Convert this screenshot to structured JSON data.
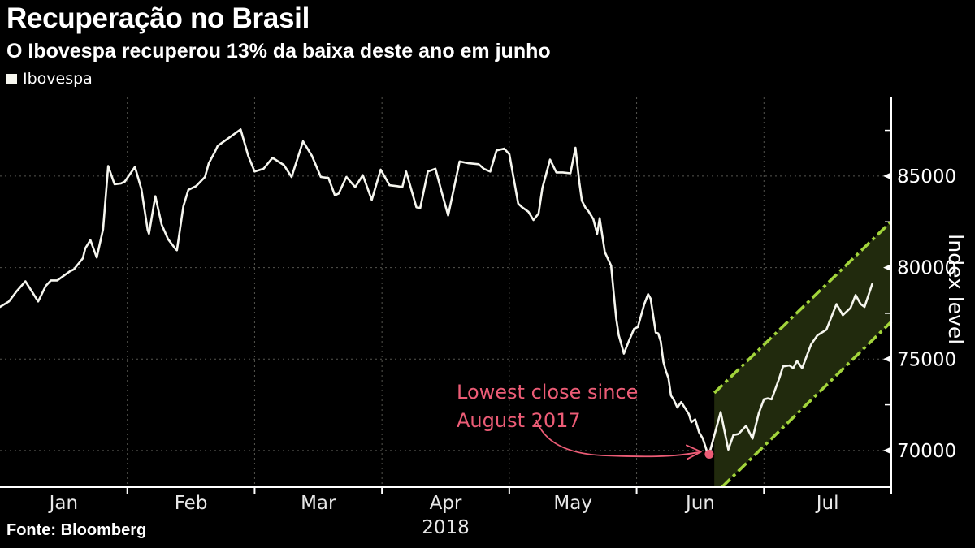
{
  "header": {
    "title": "Recuperação no Brasil",
    "subtitle": "O Ibovespa recuperou 13% da baixa deste ano em junho"
  },
  "legend": {
    "label": "Ibovespa",
    "marker_color": "#f6f6ef"
  },
  "source": {
    "label": "Fonte: Bloomberg"
  },
  "annotation": {
    "line1": "Lowest close since",
    "line2": "August 2017",
    "color": "#ec5c76",
    "dot_x": 5.57,
    "dot_value": 69800
  },
  "chart_data": {
    "type": "line",
    "title": "Recuperação no Brasil",
    "subtitle": "O Ibovespa recuperou 13% da baixa deste ano em junho",
    "x_axis": {
      "unit": "months since Jan 1 2018 (0 = Jan 1, 7 = Aug 1)",
      "range": [
        0,
        7
      ],
      "month_labels": [
        "Jan",
        "Feb",
        "Mar",
        "Apr",
        "May",
        "Jun",
        "Jul"
      ],
      "year_label": "2018",
      "gridlines_at": [
        1,
        2,
        3,
        4,
        5,
        6
      ],
      "tick_positions": [
        1,
        2,
        3,
        4,
        5,
        6,
        7
      ]
    },
    "y_axis": {
      "label": "Index level",
      "range": [
        68000,
        89300
      ],
      "major_ticks": [
        70000,
        75000,
        80000,
        85000
      ],
      "minor_ticks": [
        72500,
        77500,
        82500,
        87500
      ]
    },
    "series": [
      {
        "name": "Ibovespa",
        "color": "#f6f6ef",
        "points": [
          [
            0,
            77850
          ],
          [
            0.07,
            78150
          ],
          [
            0.13,
            78700
          ],
          [
            0.2,
            79250
          ],
          [
            0.25,
            78700
          ],
          [
            0.3,
            78150
          ],
          [
            0.36,
            79000
          ],
          [
            0.4,
            79300
          ],
          [
            0.45,
            79300
          ],
          [
            0.5,
            79550
          ],
          [
            0.55,
            79800
          ],
          [
            0.58,
            79900
          ],
          [
            0.65,
            80500
          ],
          [
            0.67,
            81050
          ],
          [
            0.71,
            81500
          ],
          [
            0.76,
            80550
          ],
          [
            0.81,
            82100
          ],
          [
            0.85,
            85550
          ],
          [
            0.9,
            84550
          ],
          [
            0.95,
            84600
          ],
          [
            0.98,
            84700
          ],
          [
            1.06,
            85500
          ],
          [
            1.11,
            84300
          ],
          [
            1.16,
            82050
          ],
          [
            1.17,
            81850
          ],
          [
            1.22,
            83900
          ],
          [
            1.27,
            82350
          ],
          [
            1.32,
            81550
          ],
          [
            1.38,
            81000
          ],
          [
            1.39,
            80950
          ],
          [
            1.44,
            83350
          ],
          [
            1.48,
            84250
          ],
          [
            1.54,
            84450
          ],
          [
            1.61,
            84950
          ],
          [
            1.64,
            85700
          ],
          [
            1.69,
            86350
          ],
          [
            1.71,
            86650
          ],
          [
            1.8,
            87100
          ],
          [
            1.89,
            87550
          ],
          [
            1.95,
            86100
          ],
          [
            2,
            85250
          ],
          [
            2.07,
            85400
          ],
          [
            2.14,
            86000
          ],
          [
            2.23,
            85600
          ],
          [
            2.29,
            84950
          ],
          [
            2.38,
            86900
          ],
          [
            2.45,
            86100
          ],
          [
            2.52,
            84950
          ],
          [
            2.58,
            84900
          ],
          [
            2.63,
            83950
          ],
          [
            2.66,
            84050
          ],
          [
            2.72,
            84950
          ],
          [
            2.79,
            84400
          ],
          [
            2.85,
            85050
          ],
          [
            2.92,
            83700
          ],
          [
            2.99,
            85350
          ],
          [
            3.06,
            84500
          ],
          [
            3.12,
            84450
          ],
          [
            3.16,
            84400
          ],
          [
            3.19,
            85250
          ],
          [
            3.27,
            83300
          ],
          [
            3.3,
            83250
          ],
          [
            3.36,
            85250
          ],
          [
            3.42,
            85400
          ],
          [
            3.47,
            84100
          ],
          [
            3.52,
            82850
          ],
          [
            3.61,
            85800
          ],
          [
            3.68,
            85700
          ],
          [
            3.76,
            85650
          ],
          [
            3.8,
            85400
          ],
          [
            3.85,
            85250
          ],
          [
            3.9,
            86400
          ],
          [
            3.96,
            86500
          ],
          [
            4,
            86200
          ],
          [
            4.07,
            83500
          ],
          [
            4.1,
            83300
          ],
          [
            4.15,
            83050
          ],
          [
            4.19,
            82600
          ],
          [
            4.23,
            82950
          ],
          [
            4.26,
            84350
          ],
          [
            4.32,
            85900
          ],
          [
            4.37,
            85200
          ],
          [
            4.42,
            85200
          ],
          [
            4.48,
            85150
          ],
          [
            4.52,
            86550
          ],
          [
            4.55,
            84650
          ],
          [
            4.57,
            83650
          ],
          [
            4.6,
            83250
          ],
          [
            4.62,
            83100
          ],
          [
            4.66,
            82650
          ],
          [
            4.69,
            81850
          ],
          [
            4.71,
            82700
          ],
          [
            4.75,
            80850
          ],
          [
            4.8,
            80100
          ],
          [
            4.82,
            78600
          ],
          [
            4.84,
            77200
          ],
          [
            4.86,
            76300
          ],
          [
            4.88,
            75800
          ],
          [
            4.9,
            75300
          ],
          [
            4.94,
            76000
          ],
          [
            4.98,
            76650
          ],
          [
            5.01,
            76750
          ],
          [
            5.06,
            78000
          ],
          [
            5.09,
            78550
          ],
          [
            5.11,
            78300
          ],
          [
            5.15,
            76450
          ],
          [
            5.17,
            76400
          ],
          [
            5.19,
            75950
          ],
          [
            5.21,
            74850
          ],
          [
            5.23,
            74350
          ],
          [
            5.25,
            73950
          ],
          [
            5.27,
            73000
          ],
          [
            5.29,
            72800
          ],
          [
            5.32,
            72350
          ],
          [
            5.35,
            72650
          ],
          [
            5.41,
            72000
          ],
          [
            5.43,
            71550
          ],
          [
            5.46,
            71700
          ],
          [
            5.49,
            71000
          ],
          [
            5.52,
            70650
          ],
          [
            5.55,
            70000
          ],
          [
            5.57,
            69800
          ],
          [
            5.66,
            72100
          ],
          [
            5.72,
            70050
          ],
          [
            5.76,
            70850
          ],
          [
            5.8,
            70900
          ],
          [
            5.86,
            71350
          ],
          [
            5.91,
            70650
          ],
          [
            5.96,
            72050
          ],
          [
            6,
            72800
          ],
          [
            6.03,
            72850
          ],
          [
            6.06,
            72800
          ],
          [
            6.12,
            73950
          ],
          [
            6.15,
            74600
          ],
          [
            6.2,
            74650
          ],
          [
            6.23,
            74500
          ],
          [
            6.26,
            74900
          ],
          [
            6.3,
            74500
          ],
          [
            6.37,
            75800
          ],
          [
            6.42,
            76300
          ],
          [
            6.49,
            76600
          ],
          [
            6.53,
            77300
          ],
          [
            6.57,
            78000
          ],
          [
            6.62,
            77400
          ],
          [
            6.68,
            77800
          ],
          [
            6.72,
            78500
          ],
          [
            6.76,
            78000
          ],
          [
            6.79,
            77850
          ],
          [
            6.85,
            79100
          ]
        ]
      }
    ],
    "channel": {
      "description": "projected recovery trend channel, dash-dot border",
      "line_color": "#a2d43b",
      "fill_color": "#212a0d",
      "top": [
        [
          5.61,
          73150
        ],
        [
          7,
          82520
        ]
      ],
      "bottom": [
        [
          5.67,
          68000
        ],
        [
          7,
          77040
        ]
      ]
    },
    "style": {
      "background": "#000000",
      "grid_color": "#55554f",
      "axis_color": "#ffffff",
      "tick_label_color": "#e8e8e8",
      "grid": "dotted",
      "legend_position": "top-left"
    }
  }
}
